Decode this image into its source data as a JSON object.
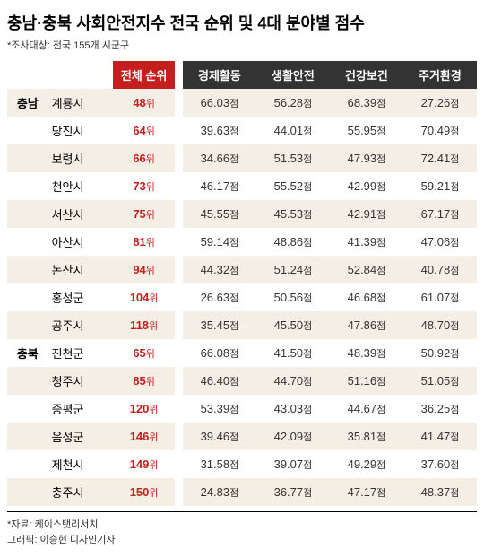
{
  "title": "충남·충북 사회안전지수 전국 순위 및 4대 분야별 점수",
  "subtitle": "*조사대상: 전국 155개 시군구",
  "headers": {
    "rank": "전체 순위",
    "cat1": "경제활동",
    "cat2": "생활안전",
    "cat3": "건강보건",
    "cat4": "주거환경"
  },
  "rank_unit": "위",
  "score_unit": "점",
  "regions": [
    {
      "name": "충남",
      "rows": [
        {
          "city": "계룡시",
          "rank": "48",
          "s1": "66.03",
          "s2": "56.28",
          "s3": "68.39",
          "s4": "27.26"
        },
        {
          "city": "당진시",
          "rank": "64",
          "s1": "39.63",
          "s2": "44.01",
          "s3": "55.95",
          "s4": "70.49"
        },
        {
          "city": "보령시",
          "rank": "66",
          "s1": "34.66",
          "s2": "51.53",
          "s3": "47.93",
          "s4": "72.41"
        },
        {
          "city": "천안시",
          "rank": "73",
          "s1": "46.17",
          "s2": "55.52",
          "s3": "42.99",
          "s4": "59.21"
        },
        {
          "city": "서산시",
          "rank": "75",
          "s1": "45.55",
          "s2": "45.53",
          "s3": "42.91",
          "s4": "67.17"
        },
        {
          "city": "아산시",
          "rank": "81",
          "s1": "59.14",
          "s2": "48.86",
          "s3": "41.39",
          "s4": "47.06"
        },
        {
          "city": "논산시",
          "rank": "94",
          "s1": "44.32",
          "s2": "51.24",
          "s3": "52.84",
          "s4": "40.78"
        },
        {
          "city": "홍성군",
          "rank": "104",
          "s1": "26.63",
          "s2": "50.56",
          "s3": "46.68",
          "s4": "61.07"
        },
        {
          "city": "공주시",
          "rank": "118",
          "s1": "35.45",
          "s2": "45.50",
          "s3": "47.86",
          "s4": "48.70"
        }
      ]
    },
    {
      "name": "충북",
      "rows": [
        {
          "city": "진천군",
          "rank": "65",
          "s1": "66.08",
          "s2": "41.50",
          "s3": "48.39",
          "s4": "50.92"
        },
        {
          "city": "청주시",
          "rank": "85",
          "s1": "46.40",
          "s2": "44.70",
          "s3": "51.16",
          "s4": "51.05"
        },
        {
          "city": "증평군",
          "rank": "120",
          "s1": "53.39",
          "s2": "43.03",
          "s3": "44.67",
          "s4": "36.25"
        },
        {
          "city": "음성군",
          "rank": "146",
          "s1": "39.46",
          "s2": "42.09",
          "s3": "35.81",
          "s4": "41.47"
        },
        {
          "city": "제천시",
          "rank": "149",
          "s1": "31.58",
          "s2": "39.07",
          "s3": "49.29",
          "s4": "37.60"
        },
        {
          "city": "충주시",
          "rank": "150",
          "s1": "24.83",
          "s2": "36.77",
          "s3": "47.17",
          "s4": "48.37"
        }
      ]
    }
  ],
  "footer": {
    "source": "*자료: 케이스탯리서치",
    "graphic": "그래픽: 이승현 디자인기자"
  },
  "colors": {
    "rank_header": "#c41e1e",
    "cat_header": "#333333",
    "row_even": "#f4eee4",
    "row_odd": "#ffffff",
    "rank_text": "#c41e1e"
  }
}
